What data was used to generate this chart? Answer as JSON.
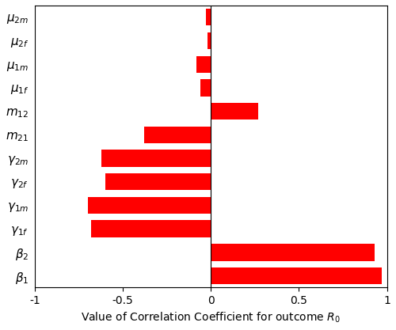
{
  "labels_top_to_bottom": [
    "$\\mu_{2m}$",
    "$\\mu_{2f}$",
    "$\\mu_{1m}$",
    "$\\mu_{1f}$",
    "$m_{12}$",
    "$m_{21}$",
    "$\\gamma_{2m}$",
    "$\\gamma_{2f}$",
    "$\\gamma_{1m}$",
    "$\\gamma_{1f}$",
    "$\\beta_2$",
    "$\\beta_1$"
  ],
  "values_top_to_bottom": [
    -0.03,
    -0.02,
    -0.08,
    -0.06,
    0.27,
    -0.38,
    -0.62,
    -0.6,
    -0.7,
    -0.68,
    0.93,
    0.97
  ],
  "bar_color": "#ff0000",
  "xlim": [
    -1,
    1
  ],
  "xticks": [
    -1,
    -0.5,
    0,
    0.5,
    1
  ],
  "xlabel": "Value of Correlation Coefficient for outcome $R_0$",
  "xlabel_fontsize": 10,
  "tick_fontsize": 10,
  "label_fontsize": 11,
  "bg_color": "#ffffff",
  "bar_height": 0.72
}
